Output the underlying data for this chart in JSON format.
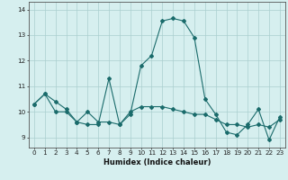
{
  "xlabel": "Humidex (Indice chaleur)",
  "bg_color": "#d6efef",
  "grid_color": "#aacfcf",
  "line_color": "#1a6b6b",
  "x_ticks": [
    0,
    1,
    2,
    3,
    4,
    5,
    6,
    7,
    8,
    9,
    10,
    11,
    12,
    13,
    14,
    15,
    16,
    17,
    18,
    19,
    20,
    21,
    22,
    23
  ],
  "y_ticks": [
    9,
    10,
    11,
    12,
    13,
    14
  ],
  "ylim": [
    8.6,
    14.3
  ],
  "xlim": [
    -0.5,
    23.5
  ],
  "series1": [
    10.3,
    10.7,
    10.0,
    10.0,
    9.6,
    10.0,
    9.6,
    9.6,
    9.5,
    10.0,
    10.2,
    10.2,
    10.2,
    10.1,
    10.0,
    9.9,
    9.9,
    9.7,
    9.5,
    9.5,
    9.4,
    9.5,
    9.4,
    9.7
  ],
  "series2": [
    10.3,
    10.7,
    10.4,
    10.1,
    9.6,
    9.5,
    9.5,
    11.3,
    9.5,
    9.9,
    11.8,
    12.2,
    13.55,
    13.65,
    13.55,
    12.9,
    10.5,
    9.9,
    9.2,
    9.1,
    9.5,
    10.1,
    8.9,
    9.8
  ],
  "xlabel_fontsize": 6.0,
  "tick_fontsize": 5.2,
  "marker_size": 2.0
}
